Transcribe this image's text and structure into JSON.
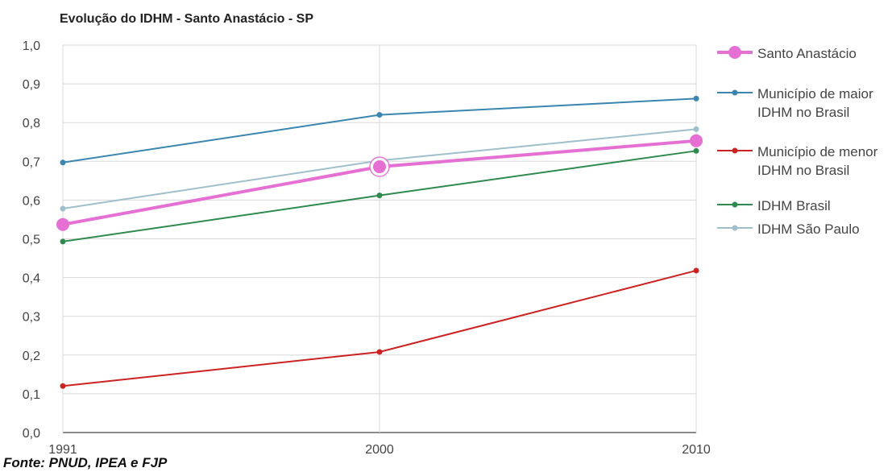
{
  "title": "Evolução do IDHM - Santo Anastácio - SP",
  "source": "Fonte: PNUD, IPEA e FJP",
  "chart_data": {
    "type": "line",
    "title": "Evolução do IDHM - Santo Anastácio - SP",
    "xlabel": "",
    "ylabel": "",
    "x": [
      "1991",
      "2000",
      "2010"
    ],
    "ylim": [
      0,
      1
    ],
    "yticks": [
      "0,0",
      "0,1",
      "0,2",
      "0,3",
      "0,4",
      "0,5",
      "0,6",
      "0,7",
      "0,8",
      "0,9",
      "1,0"
    ],
    "grid": true,
    "legend_position": "right",
    "series": [
      {
        "name": "Santo Anastácio",
        "values": [
          0.537,
          0.686,
          0.753
        ],
        "color": "#e66fd4"
      },
      {
        "name": "Município de maior IDHM no Brasil",
        "values": [
          0.697,
          0.82,
          0.862
        ],
        "color": "#3a86b0"
      },
      {
        "name": "Município de menor IDHM no Brasil",
        "values": [
          0.12,
          0.208,
          0.418
        ],
        "color": "#cc2222"
      },
      {
        "name": "IDHM Brasil",
        "values": [
          0.493,
          0.612,
          0.727
        ],
        "color": "#2f8a4e"
      },
      {
        "name": "IDHM São Paulo",
        "values": [
          0.578,
          0.702,
          0.783
        ],
        "color": "#9fbfcc"
      }
    ]
  }
}
